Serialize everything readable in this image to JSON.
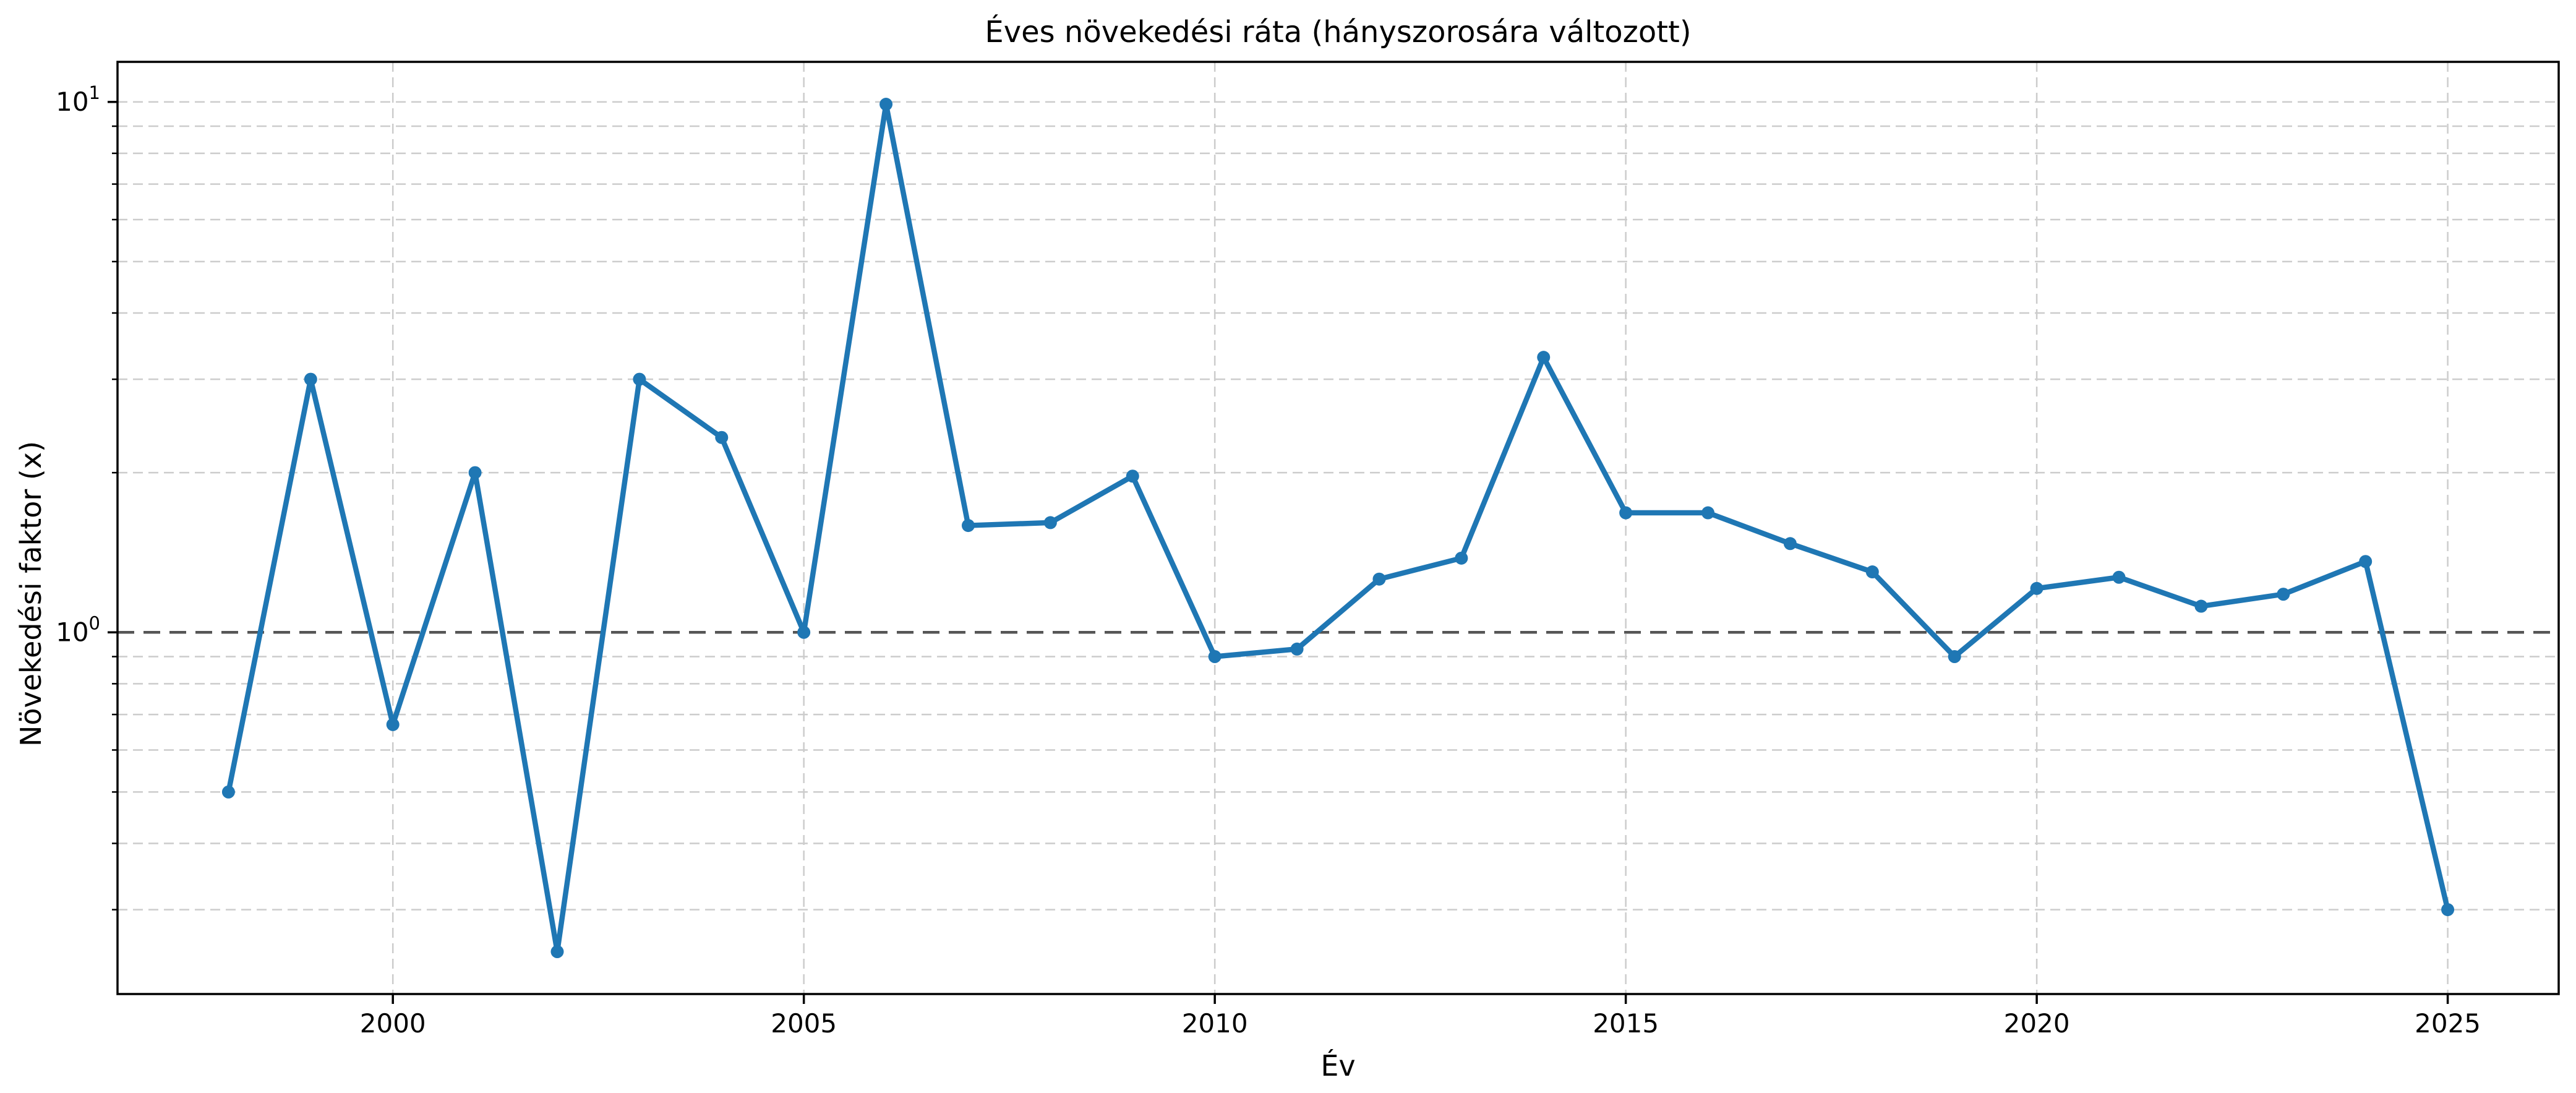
{
  "figure": {
    "background": "#ffffff",
    "title": "Éves növekedési ráta (hányszorosára változott)"
  },
  "chart_data": {
    "type": "line",
    "title": "Éves növekedési ráta (hányszorosára változott)",
    "xlabel": "Év",
    "ylabel": "Növekedési faktor (x)",
    "yscale": "log",
    "grid": true,
    "legend": null,
    "x": [
      1998,
      1999,
      2000,
      2001,
      2002,
      2003,
      2004,
      2005,
      2006,
      2007,
      2008,
      2009,
      2010,
      2011,
      2012,
      2013,
      2014,
      2015,
      2016,
      2017,
      2018,
      2019,
      2020,
      2021,
      2022,
      2023,
      2024,
      2025
    ],
    "y": [
      0.5,
      3.0,
      0.67,
      2.0,
      0.25,
      3.0,
      2.33,
      1.0,
      9.9,
      1.59,
      1.61,
      1.97,
      0.9,
      0.93,
      1.26,
      1.38,
      3.3,
      1.68,
      1.68,
      1.47,
      1.3,
      0.9,
      1.21,
      1.27,
      1.12,
      1.18,
      1.36,
      0.3
    ],
    "xlim": [
      1996.65,
      2026.35
    ],
    "ylim": [
      0.208,
      11.9
    ],
    "x_major_ticks": [
      2000,
      2005,
      2010,
      2015,
      2020,
      2025
    ],
    "y_major_ticks": [
      {
        "value": 1,
        "base": "10",
        "exp": "0"
      },
      {
        "value": 10,
        "base": "10",
        "exp": "1"
      }
    ],
    "y_minor_ticks": [
      0.3,
      0.4,
      0.5,
      0.6,
      0.7,
      0.8,
      0.9,
      2,
      3,
      4,
      5,
      6,
      7,
      8,
      9
    ],
    "y_gridline_values": [
      10,
      9,
      8,
      7,
      6,
      5,
      4,
      3,
      2,
      0.9,
      0.8,
      0.7,
      0.6,
      0.5,
      0.4,
      0.3
    ],
    "reference_line_y": 1.0,
    "colors": {
      "series": "#1f77b4",
      "grid": "#cccccc",
      "reference_line": "#555555",
      "axis": "#000000"
    }
  }
}
